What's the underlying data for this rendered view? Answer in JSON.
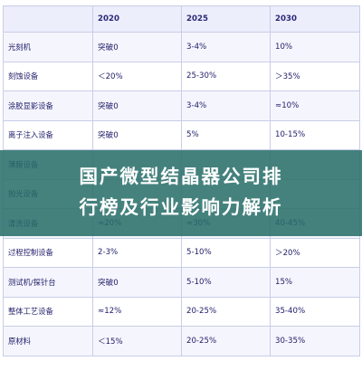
{
  "table": {
    "headers": [
      "",
      "2020",
      "2025",
      "2030"
    ],
    "rows": [
      [
        "光刻机",
        "突破0",
        "3-4%",
        "10%"
      ],
      [
        "刻蚀设备",
        "＜20%",
        "25-30%",
        "＞35%"
      ],
      [
        "涂胶显影设备",
        "突破0",
        "3-4%",
        "≈10%"
      ],
      [
        "离子注入设备",
        "突破0",
        "5%",
        "10-15%"
      ],
      [
        "薄膜设备",
        "",
        "",
        ""
      ],
      [
        "抛光设备",
        "",
        "",
        ""
      ],
      [
        "清洗设备",
        "≈20%",
        "≈30%",
        "40-45%"
      ],
      [
        "过程控制设备",
        "2-3%",
        "5-10%",
        "＞20%"
      ],
      [
        "测试机/探针台",
        "突破0",
        "5-10%",
        "15%"
      ],
      [
        "整体工艺设备",
        "≈12%",
        "20-25%",
        "35-40%"
      ],
      [
        "原材料",
        "＜15%",
        "20-25%",
        "30-35%"
      ]
    ]
  },
  "banner": {
    "line1": "国产微型结晶器公司排",
    "line2": "行榜及行业影响力解析",
    "color": "#266e68"
  }
}
